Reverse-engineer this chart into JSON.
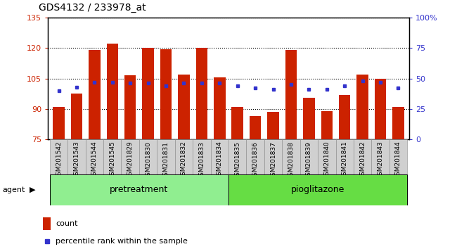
{
  "title": "GDS4132 / 233978_at",
  "samples": [
    "GSM201542",
    "GSM201543",
    "GSM201544",
    "GSM201545",
    "GSM201829",
    "GSM201830",
    "GSM201831",
    "GSM201832",
    "GSM201833",
    "GSM201834",
    "GSM201835",
    "GSM201836",
    "GSM201837",
    "GSM201838",
    "GSM201839",
    "GSM201840",
    "GSM201841",
    "GSM201842",
    "GSM201843",
    "GSM201844"
  ],
  "counts": [
    91.0,
    97.5,
    119.0,
    122.0,
    106.5,
    120.0,
    119.5,
    107.0,
    120.0,
    105.5,
    91.0,
    86.5,
    88.5,
    119.0,
    95.5,
    89.0,
    97.0,
    107.0,
    105.0,
    91.0
  ],
  "percentiles": [
    40,
    43,
    47,
    47,
    46,
    46,
    44,
    46,
    46,
    46,
    44,
    42,
    41,
    45,
    41,
    41,
    44,
    48,
    47,
    42
  ],
  "group1_label": "pretreatment",
  "group2_label": "pioglitazone",
  "group1_count": 10,
  "group2_count": 10,
  "ylim_left": [
    75,
    135
  ],
  "ylim_right": [
    0,
    100
  ],
  "yticks_left": [
    75,
    90,
    105,
    120,
    135
  ],
  "yticks_right": [
    0,
    25,
    50,
    75,
    100
  ],
  "bar_color": "#cc2200",
  "dot_color": "#3333cc",
  "group1_bg": "#90ee90",
  "group2_bg": "#66dd44",
  "agent_label": "agent",
  "legend_count": "count",
  "legend_pct": "percentile rank within the sample"
}
